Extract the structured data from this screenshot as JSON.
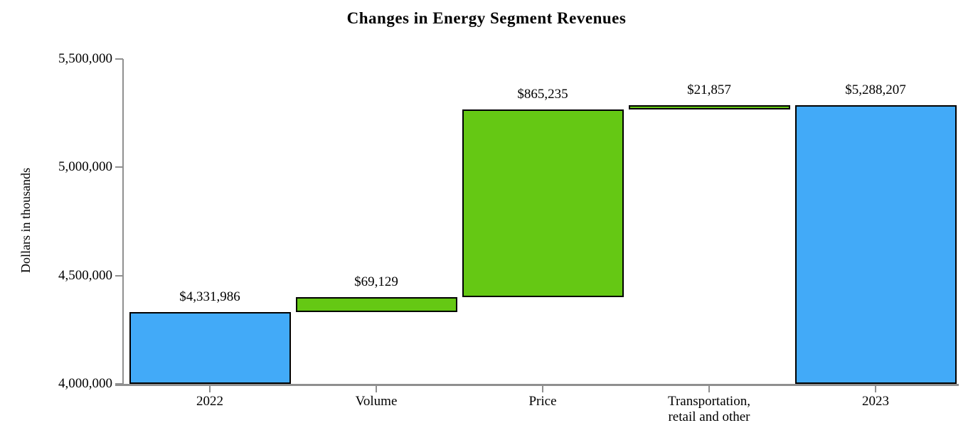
{
  "chart_data": {
    "type": "bar",
    "subtype": "waterfall",
    "title": "Changes in Energy Segment Revenues",
    "xlabel": "",
    "ylabel": "Dollars in thousands",
    "ylim": [
      4000000,
      5500000
    ],
    "grid": false,
    "legend": false,
    "y_ticks": [
      {
        "value": 5500000,
        "label": "5,500,000"
      },
      {
        "value": 5000000,
        "label": "5,000,000"
      },
      {
        "value": 4500000,
        "label": "4,500,000"
      },
      {
        "value": 4000000,
        "label": "4,000,000"
      }
    ],
    "categories": [
      "2022",
      "Volume",
      "Price",
      "Transportation, retail and other",
      "2023"
    ],
    "bars": [
      {
        "id": "2022",
        "category_lines": [
          "2022"
        ],
        "data_label": "$4,331,986",
        "start": 4000000,
        "end": 4331986,
        "value": 4331986,
        "kind": "total"
      },
      {
        "id": "volume",
        "category_lines": [
          "Volume"
        ],
        "data_label": "$69,129",
        "start": 4331986,
        "end": 4401115,
        "value": 69129,
        "kind": "change"
      },
      {
        "id": "price",
        "category_lines": [
          "Price"
        ],
        "data_label": "$865,235",
        "start": 4401115,
        "end": 5266350,
        "value": 865235,
        "kind": "change"
      },
      {
        "id": "transportation-retail-other",
        "category_lines": [
          "Transportation,",
          "retail and other"
        ],
        "data_label": "$21,857",
        "start": 5266350,
        "end": 5288207,
        "value": 21857,
        "kind": "change"
      },
      {
        "id": "2023",
        "category_lines": [
          "2023"
        ],
        "data_label": "$5,288,207",
        "start": 4000000,
        "end": 5288207,
        "value": 5288207,
        "kind": "total"
      }
    ],
    "palette": {
      "total_bar_fill": "#42AAF8",
      "change_bar_fill": "#65C814",
      "bar_outline": "#000000",
      "axis_line": "#8F8F8F",
      "text": "#000000"
    }
  }
}
